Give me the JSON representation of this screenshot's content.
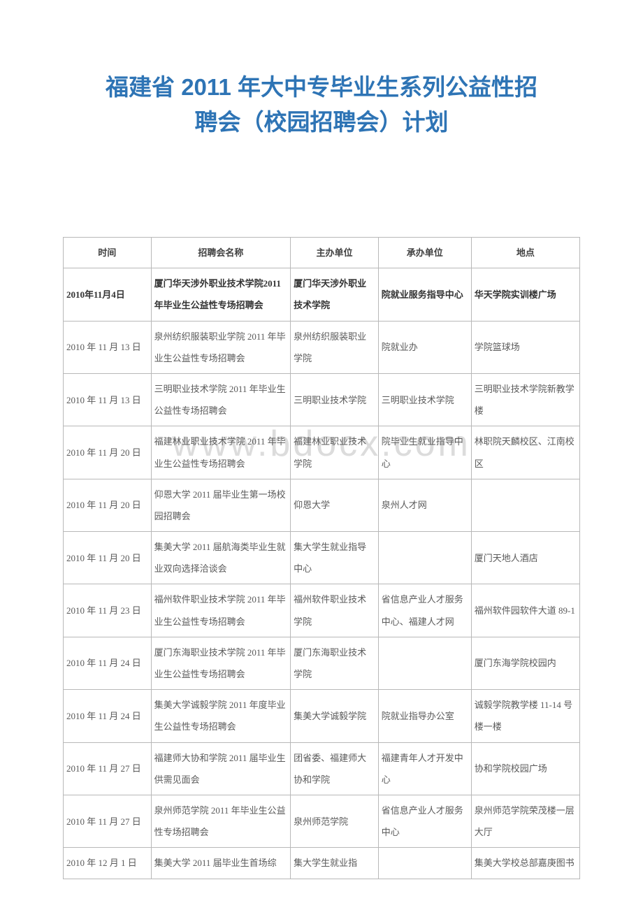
{
  "title_line1": "福建省 2011 年大中专毕业生系列公益性招",
  "title_line2": "聘会（校园招聘会）计划",
  "watermark": "www.bdocx.com",
  "columns": {
    "time": "时间",
    "name": "招聘会名称",
    "host": "主办单位",
    "org": "承办单位",
    "place": "地点"
  },
  "rows": [
    {
      "bold": true,
      "time": "2010年11月4日",
      "name": "厦门华天涉外职业技术学院2011 年毕业生公益性专场招聘会",
      "host": "厦门华天涉外职业技术学院",
      "org": "院就业服务指导中心",
      "place": "华天学院实训楼广场"
    },
    {
      "time": "2010 年 11 月 13 日",
      "name": "泉州纺织服装职业学院 2011 年毕业生公益性专场招聘会",
      "host": "泉州纺织服装职业学院",
      "org": "院就业办",
      "place": "学院篮球场"
    },
    {
      "time": "2010 年 11 月 13 日",
      "name": "三明职业技术学院 2011 年毕业生公益性专场招聘会",
      "host": "三明职业技术学院",
      "org": "三明职业技术学院",
      "place": "三明职业技术学院新教学楼"
    },
    {
      "time": "2010 年 11 月 20 日",
      "name": "福建林业职业技术学院 2011 年毕业生公益性专场招聘会",
      "host": "福建林业职业技术学院",
      "org": "院毕业生就业指导中心",
      "place": "林职院天麟校区、江南校区"
    },
    {
      "time": "2010 年 11 月 20 日",
      "name": "仰恩大学 2011 届毕业生第一场校园招聘会",
      "host": "仰恩大学",
      "org": "泉州人才网",
      "place": ""
    },
    {
      "time": "2010 年 11 月 20 日",
      "name": "集美大学 2011 届航海类毕业生就业双向选择洽谈会",
      "host": "集大学生就业指导中心",
      "org": "",
      "place": "厦门天地人酒店"
    },
    {
      "time": "2010 年 11 月 23 日",
      "name": "福州软件职业技术学院 2011 年毕业生公益性专场招聘会",
      "host": "福州软件职业技术学院",
      "org": "省信息产业人才服务中心、福建人才网",
      "place": "福州软件园软件大道 89-1"
    },
    {
      "time": "2010 年 11 月 24 日",
      "name": "厦门东海职业技术学院 2011 年毕业生公益性专场招聘会",
      "host": "厦门东海职业技术学院",
      "org": "",
      "place": "厦门东海学院校园内"
    },
    {
      "time": "2010 年 11 月 24 日",
      "name": "集美大学诚毅学院 2011 年度毕业生公益性专场招聘会",
      "host": "集美大学诚毅学院",
      "org": "院就业指导办公室",
      "place": "诚毅学院教学楼 11-14 号楼一楼"
    },
    {
      "time": "2010 年 11 月 27 日",
      "name": "福建师大协和学院 2011 届毕业生供需见面会",
      "host": "团省委、福建师大协和学院",
      "org": "福建青年人才开发中心",
      "place": "协和学院校园广场"
    },
    {
      "time": "2010 年 11 月 27 日",
      "name": "泉州师范学院 2011 年毕业生公益性专场招聘会",
      "host": "泉州师范学院",
      "org": "省信息产业人才服务中心",
      "place": "泉州师范学院荣茂楼一层大厅"
    },
    {
      "time": "2010 年 12 月 1 日",
      "name": "集美大学 2011 届毕业生首场综",
      "host": "集大学生就业指",
      "org": "",
      "place": "集美大学校总部嘉庚图书"
    }
  ]
}
